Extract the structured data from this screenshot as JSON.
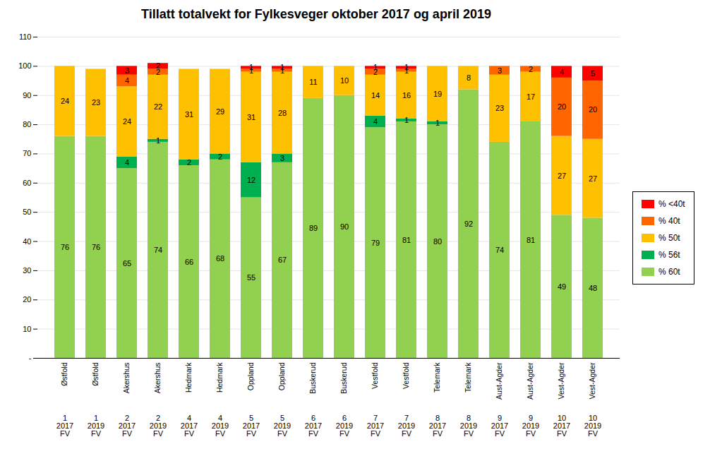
{
  "chart_data": {
    "type": "bar",
    "title": "Tillatt totalvekt for Fylkesveger oktober 2017 og april 2019",
    "categories": [
      [
        "Østfold",
        "1",
        "2017",
        "FV"
      ],
      [
        "Østfold",
        "1",
        "2019",
        "FV"
      ],
      [
        "Akershus",
        "2",
        "2017",
        "FV"
      ],
      [
        "Akershus",
        "2",
        "2019",
        "FV"
      ],
      [
        "Hedmark",
        "4",
        "2017",
        "FV"
      ],
      [
        "Hedmark",
        "4",
        "2019",
        "FV"
      ],
      [
        "Oppland",
        "5",
        "2017",
        "FV"
      ],
      [
        "Oppland",
        "5",
        "2019",
        "FV"
      ],
      [
        "Buskerud",
        "6",
        "2017",
        "FV"
      ],
      [
        "Buskerud",
        "6",
        "2019",
        "FV"
      ],
      [
        "Vestfold",
        "7",
        "2017",
        "FV"
      ],
      [
        "Vestfold",
        "7",
        "2019",
        "FV"
      ],
      [
        "Telemark",
        "8",
        "2017",
        "FV"
      ],
      [
        "Telemark",
        "8",
        "2019",
        "FV"
      ],
      [
        "Aust-Agder",
        "9",
        "2017",
        "FV"
      ],
      [
        "Aust-Agder",
        "9",
        "2019",
        "FV"
      ],
      [
        "Vest-Agder",
        "10",
        "2017",
        "FV"
      ],
      [
        "Vest-Agder",
        "10",
        "2019",
        "FV"
      ]
    ],
    "series": [
      {
        "name": "% 60t",
        "color": "#92d050",
        "values": [
          76,
          76,
          65,
          74,
          66,
          68,
          55,
          67,
          89,
          90,
          79,
          81,
          80,
          92,
          74,
          81,
          49,
          48
        ]
      },
      {
        "name": "% 56t",
        "color": "#00b050",
        "values": [
          0,
          0,
          4,
          1,
          2,
          2,
          12,
          3,
          0,
          0,
          4,
          1,
          1,
          0,
          0,
          0,
          0,
          0
        ]
      },
      {
        "name": "% 50t",
        "color": "#ffc000",
        "values": [
          24,
          23,
          24,
          22,
          31,
          29,
          31,
          28,
          11,
          10,
          14,
          16,
          19,
          8,
          23,
          17,
          27,
          27
        ]
      },
      {
        "name": "% 40t",
        "color": "#ff6600",
        "values": [
          0,
          0,
          4,
          2,
          0,
          0,
          1,
          1,
          0,
          0,
          2,
          1,
          0,
          0,
          3,
          2,
          20,
          20
        ]
      },
      {
        "name": "% <40t",
        "color": "#ff0000",
        "values": [
          0,
          0,
          3,
          2,
          0,
          0,
          1,
          1,
          0,
          0,
          1,
          1,
          0,
          0,
          0,
          0,
          4,
          5
        ]
      }
    ],
    "stacked": true,
    "data_labels": true,
    "ylim": [
      0,
      110
    ],
    "yticks": [
      {
        "value": 0,
        "label": "-"
      },
      10,
      20,
      30,
      40,
      50,
      60,
      70,
      80,
      90,
      100,
      110
    ],
    "grid": true,
    "legend": "right"
  }
}
